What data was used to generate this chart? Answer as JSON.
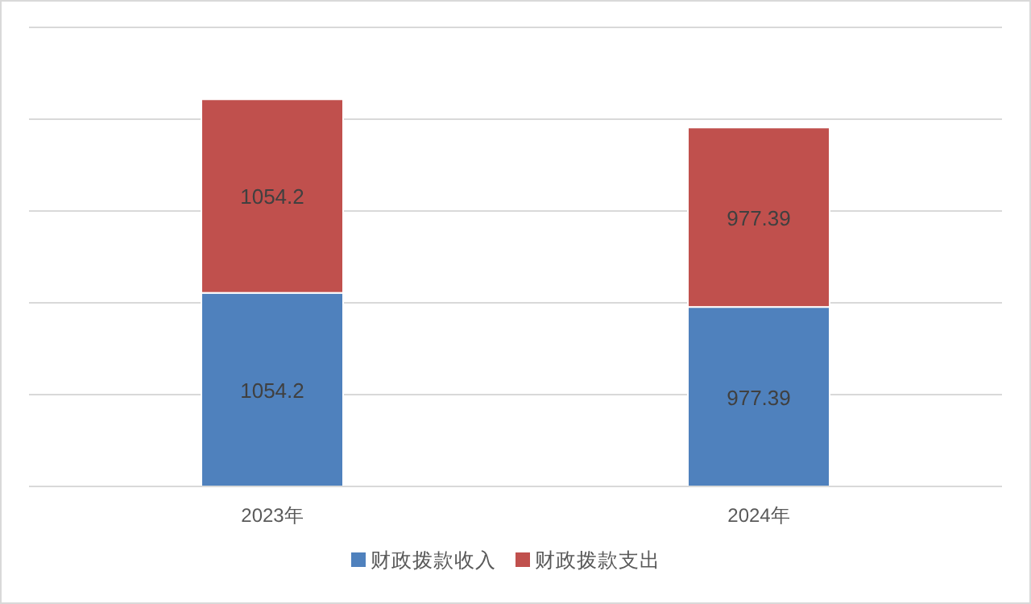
{
  "chart_data": {
    "type": "bar",
    "categories": [
      "2023年",
      "2024年"
    ],
    "stacked": true,
    "series": [
      {
        "name": "财政拨款收入",
        "color": "#4f81bd",
        "values": [
          1054.2,
          977.39
        ]
      },
      {
        "name": "财政拨款支出",
        "color": "#c0504d",
        "values": [
          1054.2,
          977.39
        ]
      }
    ],
    "ylim": [
      0,
      2500
    ],
    "yticks": [
      {
        "value": 0,
        "label": null
      },
      {
        "value": 500,
        "label": null
      },
      {
        "value": 1000,
        "label": null
      },
      {
        "value": 1500,
        "label": null
      },
      {
        "value": 2000,
        "label": null
      },
      {
        "value": 2500,
        "label": null
      }
    ],
    "tick_labels": "x",
    "grid": "y",
    "legend": "bottom",
    "data_labels": true
  }
}
